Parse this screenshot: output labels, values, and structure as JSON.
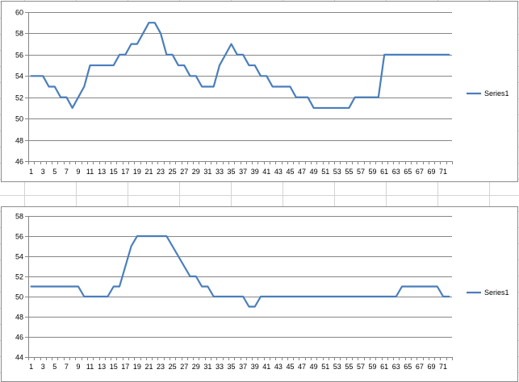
{
  "chart_data": [
    {
      "type": "line",
      "title": "",
      "xlabel": "",
      "ylabel": "",
      "ylim": [
        46,
        60
      ],
      "y_ticks": [
        46,
        48,
        50,
        52,
        54,
        56,
        58,
        60
      ],
      "x_tick_labels": [
        "1",
        "3",
        "5",
        "7",
        "9",
        "11",
        "13",
        "15",
        "17",
        "19",
        "21",
        "23",
        "25",
        "27",
        "29",
        "31",
        "33",
        "35",
        "37",
        "39",
        "41",
        "43",
        "45",
        "47",
        "49",
        "51",
        "53",
        "55",
        "57",
        "59",
        "61",
        "63",
        "65",
        "67",
        "69",
        "71"
      ],
      "grid": "horizontal major",
      "legend": "right",
      "series": [
        {
          "name": "Series1",
          "color": "#4a7ebb",
          "x": [
            1,
            2,
            3,
            4,
            5,
            6,
            7,
            8,
            9,
            10,
            11,
            12,
            13,
            14,
            15,
            16,
            17,
            18,
            19,
            20,
            21,
            22,
            23,
            24,
            25,
            26,
            27,
            28,
            29,
            30,
            31,
            32,
            33,
            34,
            35,
            36,
            37,
            38,
            39,
            40,
            41,
            42,
            43,
            44,
            45,
            46,
            47,
            48,
            49,
            50,
            51,
            52,
            53,
            54,
            55,
            56,
            57,
            58,
            59,
            60,
            61,
            62,
            63,
            64,
            65,
            66,
            67,
            68,
            69,
            70,
            71,
            72
          ],
          "values": [
            54,
            54,
            54,
            53,
            53,
            52,
            52,
            51,
            52,
            53,
            55,
            55,
            55,
            55,
            55,
            56,
            56,
            57,
            57,
            58,
            59,
            59,
            58,
            56,
            56,
            55,
            55,
            54,
            54,
            53,
            53,
            53,
            55,
            56,
            57,
            56,
            56,
            55,
            55,
            54,
            54,
            53,
            53,
            53,
            53,
            52,
            52,
            52,
            51,
            51,
            51,
            51,
            51,
            51,
            51,
            52,
            52,
            52,
            52,
            52,
            56,
            56,
            56,
            56,
            56,
            56,
            56,
            56,
            56,
            56,
            56,
            56
          ]
        }
      ]
    },
    {
      "type": "line",
      "title": "",
      "xlabel": "",
      "ylabel": "",
      "ylim": [
        44,
        58
      ],
      "y_ticks": [
        44,
        46,
        48,
        50,
        52,
        54,
        56,
        58
      ],
      "x_tick_labels": [
        "1",
        "3",
        "5",
        "7",
        "9",
        "11",
        "13",
        "15",
        "17",
        "19",
        "21",
        "23",
        "25",
        "27",
        "29",
        "31",
        "33",
        "35",
        "37",
        "39",
        "41",
        "43",
        "45",
        "47",
        "49",
        "51",
        "53",
        "55",
        "57",
        "59",
        "61",
        "63",
        "65",
        "67",
        "69",
        "71"
      ],
      "grid": "horizontal major",
      "legend": "right",
      "series": [
        {
          "name": "Series1",
          "color": "#4a7ebb",
          "x": [
            1,
            2,
            3,
            4,
            5,
            6,
            7,
            8,
            9,
            10,
            11,
            12,
            13,
            14,
            15,
            16,
            17,
            18,
            19,
            20,
            21,
            22,
            23,
            24,
            25,
            26,
            27,
            28,
            29,
            30,
            31,
            32,
            33,
            34,
            35,
            36,
            37,
            38,
            39,
            40,
            41,
            42,
            43,
            44,
            45,
            46,
            47,
            48,
            49,
            50,
            51,
            52,
            53,
            54,
            55,
            56,
            57,
            58,
            59,
            60,
            61,
            62,
            63,
            64,
            65,
            66,
            67,
            68,
            69,
            70,
            71,
            72
          ],
          "values": [
            51,
            51,
            51,
            51,
            51,
            51,
            51,
            51,
            51,
            50,
            50,
            50,
            50,
            50,
            51,
            51,
            53,
            55,
            56,
            56,
            56,
            56,
            56,
            56,
            55,
            54,
            53,
            52,
            52,
            51,
            51,
            50,
            50,
            50,
            50,
            50,
            50,
            49,
            49,
            50,
            50,
            50,
            50,
            50,
            50,
            50,
            50,
            50,
            50,
            50,
            50,
            50,
            50,
            50,
            50,
            50,
            50,
            50,
            50,
            50,
            50,
            50,
            50,
            51,
            51,
            51,
            51,
            51,
            51,
            51,
            50,
            50
          ]
        }
      ]
    }
  ]
}
